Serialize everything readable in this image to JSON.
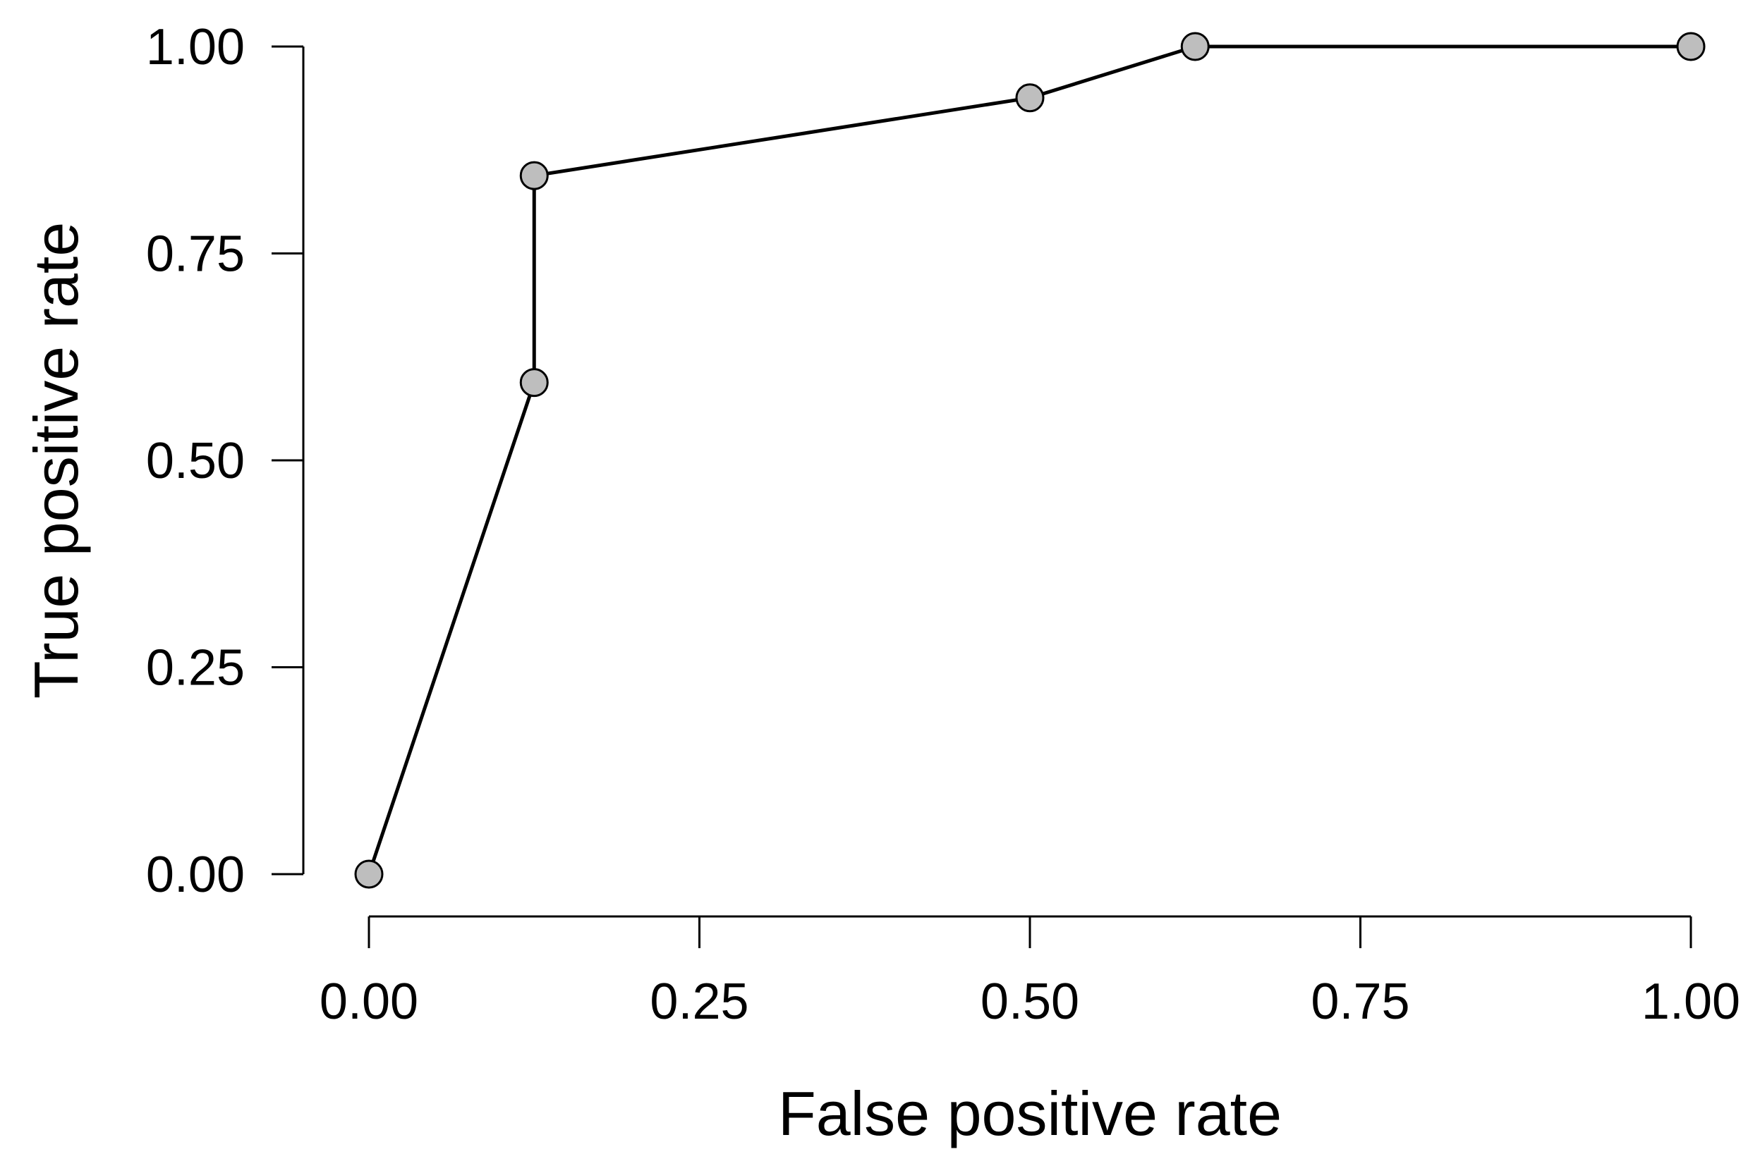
{
  "chart_data": {
    "type": "line",
    "title": "",
    "xlabel": "False positive rate",
    "ylabel": "True positive rate",
    "xlim": [
      0,
      1
    ],
    "ylim": [
      0,
      1
    ],
    "x_ticks": [
      "0.00",
      "0.25",
      "0.50",
      "0.75",
      "1.00"
    ],
    "y_ticks": [
      "0.00",
      "0.25",
      "0.50",
      "0.75",
      "1.00"
    ],
    "grid": false,
    "legend": "none",
    "series": [
      {
        "x": [
          0.0,
          0.125,
          0.125,
          0.5,
          0.625,
          1.0
        ],
        "y": [
          0.0,
          0.594,
          0.844,
          0.938,
          1.0,
          1.0
        ]
      }
    ],
    "colors": {
      "line": "#000000",
      "marker_fill": "#bebebe",
      "marker_stroke": "#000000"
    }
  }
}
